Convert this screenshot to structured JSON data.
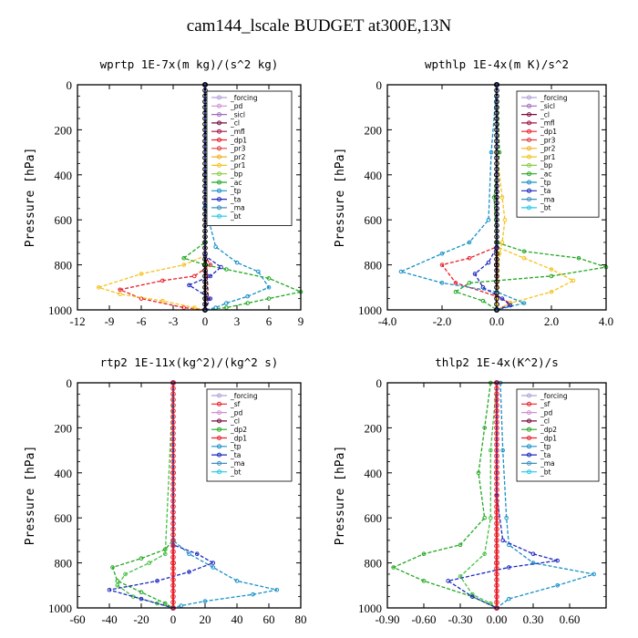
{
  "title": "cam144_lscale  BUDGET at300E,13N",
  "chart_data": [
    {
      "type": "line",
      "title": "wprtp  1E-7x(m kg)/(s^2 kg)",
      "ylabel": "Pressure [hPa]",
      "xlim": [
        -12,
        9
      ],
      "ylim": [
        1000,
        0
      ],
      "xticks": [
        "-12",
        "-9",
        "-6",
        "-3",
        "0",
        "3",
        "6",
        "9"
      ],
      "yticks": [
        "0",
        "200",
        "400",
        "600",
        "800",
        "1000"
      ],
      "legend": [
        "_forcing",
        "_pd",
        "_sicl",
        "_cl",
        "_mfl",
        "_dp1",
        "_pr3",
        "_pr2",
        "_pr1",
        "_bp",
        "_ac",
        "_tp",
        "_ta",
        "_ma",
        "_bt"
      ],
      "series": [
        {
          "name": "_forcing",
          "color": "#000000",
          "x": [
            0,
            0,
            0,
            0
          ],
          "y": [
            0,
            400,
            800,
            1000
          ]
        },
        {
          "name": "_cl",
          "color": "#7b0a3e",
          "x": [
            0,
            0,
            0.2,
            0.3,
            0
          ],
          "y": [
            0,
            700,
            850,
            950,
            1000
          ]
        },
        {
          "name": "_dp1",
          "color": "#e8202a",
          "x": [
            0,
            0,
            0.5,
            -1,
            -4,
            -8,
            -6,
            -2,
            0
          ],
          "y": [
            0,
            760,
            800,
            850,
            870,
            910,
            950,
            990,
            1000
          ]
        },
        {
          "name": "_pr1",
          "color": "#f4c21b",
          "x": [
            0,
            0,
            -2,
            -6,
            -10,
            -8,
            -4,
            -1,
            0
          ],
          "y": [
            0,
            760,
            800,
            840,
            900,
            930,
            960,
            990,
            1000
          ]
        },
        {
          "name": "_ac",
          "color": "#22a822",
          "x": [
            0,
            0,
            -2,
            0,
            2,
            6,
            9,
            6,
            4,
            2,
            0
          ],
          "y": [
            0,
            700,
            770,
            800,
            820,
            860,
            920,
            950,
            970,
            990,
            1000
          ]
        },
        {
          "name": "_tp",
          "color": "#1890c8",
          "x": [
            0,
            0,
            1,
            3,
            5,
            6,
            4,
            2,
            1,
            0
          ],
          "y": [
            0,
            540,
            720,
            790,
            830,
            900,
            940,
            970,
            990,
            1000
          ]
        },
        {
          "name": "_ta",
          "color": "#1c28c0",
          "x": [
            0,
            0,
            1.5,
            0.5,
            -1.5,
            0.5,
            0
          ],
          "y": [
            0,
            760,
            810,
            850,
            890,
            950,
            1000
          ]
        }
      ]
    },
    {
      "type": "line",
      "title": "wpthlp  1E-4x(m K)/s^2",
      "ylabel": "Pressure [hPa]",
      "xlim": [
        -4,
        4
      ],
      "ylim": [
        1000,
        0
      ],
      "xticks": [
        "-4.0",
        "-2.0",
        "0.0",
        "2.0",
        "4.0"
      ],
      "yticks": [
        "0",
        "200",
        "400",
        "600",
        "800",
        "1000"
      ],
      "legend": [
        "_forcing",
        "_sicl",
        "_cl",
        "_mfl",
        "_dp1",
        "_pr3",
        "_pr2",
        "_pr1",
        "_bp",
        "_ac",
        "_tp",
        "_ta",
        "_ma",
        "_bt"
      ],
      "series": [
        {
          "name": "_forcing",
          "color": "#000000",
          "x": [
            0,
            0,
            0,
            0
          ],
          "y": [
            0,
            400,
            800,
            1000
          ]
        },
        {
          "name": "_cl",
          "color": "#7b0a3e",
          "x": [
            0,
            0,
            0,
            0
          ],
          "y": [
            0,
            300,
            700,
            1000
          ]
        },
        {
          "name": "_ac",
          "color": "#22a822",
          "x": [
            0,
            0.1,
            -0.1,
            0,
            1,
            3,
            4,
            2,
            -1,
            -1.5,
            -0.5,
            0
          ],
          "y": [
            0,
            300,
            500,
            700,
            740,
            770,
            810,
            850,
            880,
            920,
            960,
            1000
          ]
        },
        {
          "name": "_dp1",
          "color": "#e8202a",
          "x": [
            0,
            0,
            -1,
            -2,
            -1.5,
            0,
            0.5,
            0
          ],
          "y": [
            0,
            720,
            770,
            800,
            880,
            940,
            970,
            1000
          ]
        },
        {
          "name": "_pr1",
          "color": "#f4c21b",
          "x": [
            0,
            0,
            0.2,
            0.3,
            0.2,
            0.1,
            0
          ],
          "y": [
            0,
            300,
            500,
            600,
            700,
            750,
            1000
          ]
        },
        {
          "name": "_pr2",
          "color": "#f4c21b",
          "x": [
            0,
            0,
            1,
            2,
            2.8,
            2,
            0.5,
            0
          ],
          "y": [
            0,
            720,
            770,
            820,
            870,
            920,
            970,
            1000
          ]
        },
        {
          "name": "_tp",
          "color": "#1890c8",
          "x": [
            0,
            -0.2,
            -0.3,
            -1,
            -2,
            -3.5,
            -2,
            0,
            1,
            0
          ],
          "y": [
            0,
            300,
            600,
            700,
            750,
            830,
            880,
            920,
            970,
            1000
          ]
        },
        {
          "name": "_ta",
          "color": "#1c28c0",
          "x": [
            0,
            0,
            -0.3,
            -0.8,
            -0.5,
            0.2,
            0.5,
            0
          ],
          "y": [
            0,
            720,
            790,
            840,
            900,
            950,
            980,
            1000
          ]
        }
      ]
    },
    {
      "type": "line",
      "title": "rtp2  1E-11x(kg^2)/(kg^2 s)",
      "ylabel": "Pressure [hPa]",
      "xlim": [
        -60,
        80
      ],
      "ylim": [
        1000,
        0
      ],
      "xticks": [
        "-60",
        "-40",
        "-20",
        "0",
        "20",
        "40",
        "60",
        "80"
      ],
      "yticks": [
        "0",
        "200",
        "400",
        "600",
        "800",
        "1000"
      ],
      "legend": [
        "_forcing",
        "_sf",
        "_pd",
        "_cl",
        "_dp2",
        "_dp1",
        "_tp",
        "_ta",
        "_ma",
        "_bt"
      ],
      "series": [
        {
          "name": "_forcing",
          "color": "#e8202a",
          "x": [
            0,
            0,
            0,
            0
          ],
          "y": [
            0,
            400,
            800,
            1000
          ]
        },
        {
          "name": "_dp2",
          "color": "#22a822",
          "x": [
            0,
            0,
            -5,
            -20,
            -38,
            -35,
            -20,
            -5,
            0
          ],
          "y": [
            0,
            700,
            740,
            780,
            820,
            880,
            930,
            980,
            1000
          ]
        },
        {
          "name": "_dp1",
          "color": "#44c044",
          "x": [
            0,
            -5,
            -15,
            -30,
            -35,
            -25,
            -10,
            0
          ],
          "y": [
            0,
            760,
            800,
            850,
            900,
            950,
            980,
            1000
          ]
        },
        {
          "name": "_tp",
          "color": "#1890c8",
          "x": [
            0,
            0,
            10,
            25,
            40,
            65,
            50,
            20,
            5,
            0
          ],
          "y": [
            0,
            700,
            760,
            820,
            880,
            920,
            940,
            970,
            990,
            1000
          ]
        },
        {
          "name": "_ta",
          "color": "#1c28c0",
          "x": [
            0,
            0,
            15,
            25,
            10,
            -10,
            -40,
            -20,
            0
          ],
          "y": [
            0,
            720,
            760,
            800,
            840,
            880,
            920,
            960,
            1000
          ]
        }
      ]
    },
    {
      "type": "line",
      "title": "thlp2  1E-4x(K^2)/s",
      "ylabel": "Pressure [hPa]",
      "xlim": [
        -0.9,
        0.9
      ],
      "ylim": [
        1000,
        0
      ],
      "xticks": [
        "-0.90",
        "-0.60",
        "-0.30",
        "0.00",
        "0.30",
        "0.60"
      ],
      "yticks": [
        "0",
        "200",
        "400",
        "600",
        "800",
        "1000"
      ],
      "legend": [
        "_forcing",
        "_sf",
        "_pd",
        "_cl",
        "_dp2",
        "_dp1",
        "_tp",
        "_ta",
        "_ma",
        "_bt"
      ],
      "series": [
        {
          "name": "_forcing",
          "color": "#e8202a",
          "x": [
            0,
            0,
            0,
            0
          ],
          "y": [
            0,
            400,
            800,
            1000
          ]
        },
        {
          "name": "_dp2",
          "color": "#22a822",
          "x": [
            -0.05,
            -0.1,
            -0.15,
            -0.1,
            -0.3,
            -0.6,
            -0.85,
            -0.6,
            -0.2,
            0
          ],
          "y": [
            0,
            200,
            400,
            600,
            720,
            760,
            820,
            880,
            950,
            1000
          ]
        },
        {
          "name": "_dp1",
          "color": "#44c044",
          "x": [
            0,
            -0.05,
            -0.05,
            -0.1,
            -0.3,
            -0.2,
            -0.05,
            0
          ],
          "y": [
            0,
            300,
            600,
            760,
            860,
            940,
            980,
            1000
          ]
        },
        {
          "name": "_tp",
          "color": "#1890c8",
          "x": [
            0.03,
            0.05,
            0.08,
            0.1,
            0.3,
            0.8,
            0.5,
            0.1,
            0
          ],
          "y": [
            0,
            300,
            600,
            720,
            800,
            850,
            900,
            960,
            1000
          ]
        },
        {
          "name": "_ta",
          "color": "#1c28c0",
          "x": [
            0,
            0,
            0.05,
            0.3,
            0.5,
            0.1,
            -0.4,
            -0.2,
            0
          ],
          "y": [
            0,
            500,
            700,
            760,
            790,
            820,
            880,
            950,
            1000
          ]
        }
      ]
    }
  ]
}
